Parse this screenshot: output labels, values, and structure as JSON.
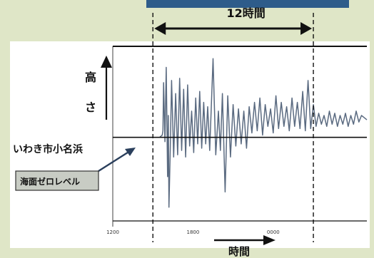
{
  "chart_data": {
    "type": "line",
    "title": "",
    "duration_label": "12時間",
    "xlabel": "時間",
    "ylabel": "高さ",
    "ylabel_chars": [
      "高",
      "さ"
    ],
    "location_label": "いわき市小名浜",
    "baseline_label": "海面ゼロレベル",
    "x_tick_labels": [
      "1200",
      "1800",
      "0000"
    ],
    "x_ticks": [
      0,
      6,
      12
    ],
    "xlim": [
      0,
      19
    ],
    "ylim": [
      -3.5,
      4
    ],
    "grid": false,
    "window": [
      3,
      15
    ],
    "series": [
      {
        "values": [
          [
            0,
            0
          ],
          [
            3,
            0
          ],
          [
            3.5,
            0
          ],
          [
            3.6,
            0.05
          ],
          [
            3.7,
            0.1
          ],
          [
            3.75,
            0.3
          ],
          [
            3.8,
            2.5
          ],
          [
            3.9,
            -0.2
          ],
          [
            4.0,
            3.2
          ],
          [
            4.1,
            -1.8
          ],
          [
            4.15,
            1.0
          ],
          [
            4.2,
            -3.2
          ],
          [
            4.3,
            -0.5
          ],
          [
            4.4,
            2.6
          ],
          [
            4.55,
            -0.9
          ],
          [
            4.7,
            2.0
          ],
          [
            4.85,
            -0.8
          ],
          [
            5.0,
            2.7
          ],
          [
            5.15,
            -0.6
          ],
          [
            5.3,
            2.2
          ],
          [
            5.45,
            -0.9
          ],
          [
            5.6,
            2.4
          ],
          [
            5.75,
            -0.4
          ],
          [
            5.9,
            1.2
          ],
          [
            6.05,
            -0.7
          ],
          [
            6.2,
            1.8
          ],
          [
            6.35,
            -0.3
          ],
          [
            6.5,
            2.1
          ],
          [
            6.65,
            -0.5
          ],
          [
            6.8,
            1.6
          ],
          [
            6.95,
            -0.3
          ],
          [
            7.1,
            1.4
          ],
          [
            7.25,
            -0.6
          ],
          [
            7.5,
            3.6
          ],
          [
            7.7,
            -0.8
          ],
          [
            7.9,
            1.2
          ],
          [
            8.05,
            -0.6
          ],
          [
            8.2,
            2.0
          ],
          [
            8.4,
            -2.5
          ],
          [
            8.6,
            1.9
          ],
          [
            8.8,
            -0.9
          ],
          [
            9.0,
            1.5
          ],
          [
            9.2,
            -0.4
          ],
          [
            9.4,
            1.3
          ],
          [
            9.6,
            -0.3
          ],
          [
            9.8,
            1.2
          ],
          [
            10.0,
            -0.5
          ],
          [
            10.2,
            1.4
          ],
          [
            10.4,
            0.2
          ],
          [
            10.6,
            1.6
          ],
          [
            10.8,
            0.3
          ],
          [
            11.0,
            1.8
          ],
          [
            11.2,
            0.1
          ],
          [
            11.4,
            1.5
          ],
          [
            11.6,
            0.5
          ],
          [
            11.8,
            1.3
          ],
          [
            12.0,
            0.2
          ],
          [
            12.2,
            1.9
          ],
          [
            12.4,
            0.4
          ],
          [
            12.6,
            1.6
          ],
          [
            12.8,
            0.5
          ],
          [
            13.0,
            1.4
          ],
          [
            13.2,
            0.3
          ],
          [
            13.4,
            1.8
          ],
          [
            13.6,
            0.5
          ],
          [
            13.8,
            1.6
          ],
          [
            14.0,
            0.4
          ],
          [
            14.2,
            2.1
          ],
          [
            14.4,
            0.3
          ],
          [
            14.6,
            2.6
          ],
          [
            14.8,
            0.4
          ],
          [
            15.0,
            1.5
          ],
          [
            15.2,
            0.5
          ],
          [
            15.4,
            1.1
          ],
          [
            15.6,
            0.6
          ],
          [
            15.8,
            1.0
          ],
          [
            16.0,
            0.5
          ],
          [
            16.2,
            1.2
          ],
          [
            16.4,
            0.6
          ],
          [
            16.6,
            1.1
          ],
          [
            16.8,
            0.5
          ],
          [
            17.0,
            1.0
          ],
          [
            17.2,
            0.6
          ],
          [
            17.4,
            1.1
          ],
          [
            17.6,
            0.5
          ],
          [
            17.8,
            1.0
          ],
          [
            18.0,
            0.6
          ],
          [
            18.2,
            1.2
          ],
          [
            18.4,
            0.7
          ],
          [
            18.6,
            1.0
          ],
          [
            19.0,
            0.8
          ]
        ]
      }
    ]
  },
  "colors": {
    "background": "#dfe6c7",
    "plot_background": "#ffffff",
    "wave": "#5a6a80",
    "accent": "#2e5c8a",
    "label_box": "#c8ccc4",
    "frame": "#111111"
  }
}
